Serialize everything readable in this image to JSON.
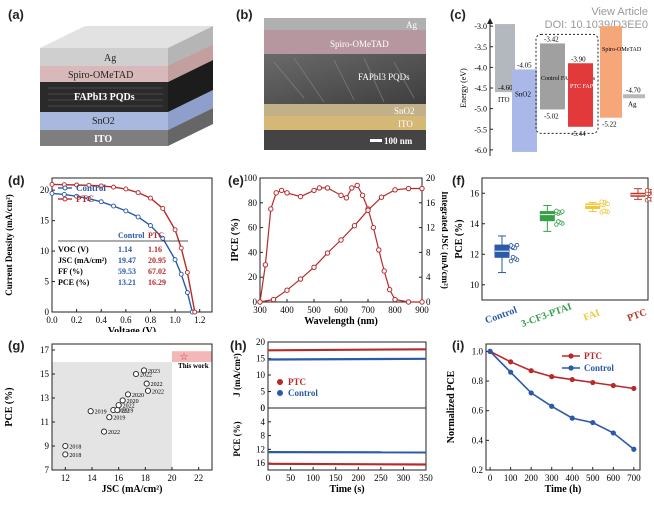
{
  "watermark": {
    "line1": "View Article",
    "line2": "DOI: 10.1039/D3EE0"
  },
  "panels": {
    "a": {
      "label": "(a)",
      "layers": [
        "Ag",
        "Spiro-OMeTAD",
        "FAPbI3 PQDs",
        "SnO2",
        "ITO"
      ],
      "colors": {
        "ag": "#d0d0d0",
        "spiro": "#d8b8b8",
        "pqd": "#2a2a2a",
        "sno2": "#a9b8de",
        "ito": "#8c8c8c"
      }
    },
    "b": {
      "label": "(b)",
      "layers": [
        "Ag",
        "Spiro-OMeTAD",
        "FAPbI3 PQDs",
        "SnO2",
        "ITO"
      ],
      "scalebar": "100 nm"
    },
    "c": {
      "label": "(c)",
      "ylabel": "Energy (eV)",
      "yticks": [
        "-3.0",
        "-3.5",
        "-4.0",
        "-4.5",
        "-5.0",
        "-5.5",
        "-6.0"
      ],
      "ylim": [
        -6.1,
        -2.9
      ],
      "ito": {
        "name": "ITO",
        "level": "-4.60"
      },
      "sno2": {
        "name": "SnO2",
        "cb": "-4.05"
      },
      "control": {
        "name": "Control FAPbI3 PQDs",
        "cb": "-3.42",
        "vb": "-5.02"
      },
      "ptc": {
        "name": "PTC FAPbI3 PQDs",
        "cb": "-3.90",
        "vb": "-5.44"
      },
      "spiro": {
        "name": "Spiro-OMeTAD",
        "vb": "-5.22"
      },
      "ag": {
        "name": "Ag",
        "level": "-4.70"
      },
      "colors": {
        "ito": "#9aa0a8",
        "sno2": "#a9b8e8",
        "control": "#a0a0a0",
        "ptc": "#e23a3a",
        "spiro": "#f5a77a",
        "ag": "#b8b8b8"
      }
    },
    "d": {
      "label": "(d)",
      "xlabel": "Voltage (V)",
      "ylabel": "Current Density (mA/cm²)",
      "xticks": [
        "0.0",
        "0.2",
        "0.4",
        "0.6",
        "0.8",
        "1.0",
        "1.2"
      ],
      "yticks": [
        "0",
        "5",
        "10",
        "15",
        "20"
      ],
      "legend": [
        "Control",
        "PTC"
      ],
      "table": {
        "headers": [
          "",
          "Control",
          "PTC"
        ],
        "rows": [
          [
            "VOC (V)",
            "1.14",
            "1.16"
          ],
          [
            "JSC (mA/cm²)",
            "19.47",
            "20.95"
          ],
          [
            "FF (%)",
            "59.53",
            "67.02"
          ],
          [
            "PCE (%)",
            "13.21",
            "16.29"
          ]
        ]
      }
    },
    "e": {
      "label": "(e)",
      "xlabel": "Wavelength (nm)",
      "ylabel_left": "IPCE (%)",
      "ylabel_right": "Integrated JSC (mA/cm²)",
      "xticks": [
        "300",
        "400",
        "500",
        "600",
        "700",
        "800",
        "900"
      ],
      "yticks_left": [
        "0",
        "20",
        "40",
        "60",
        "80",
        "100"
      ],
      "yticks_right": [
        "0",
        "4",
        "8",
        "12",
        "16",
        "20"
      ]
    },
    "f": {
      "label": "(f)",
      "ylabel": "PCE (%)",
      "yticks": [
        "10",
        "12",
        "14",
        "16"
      ],
      "categories": [
        "Control",
        "3-CF3-PTAI",
        "FAI",
        "PTC"
      ],
      "colors": [
        "#2a5aa8",
        "#35a048",
        "#f0c83a",
        "#b83a2a"
      ]
    },
    "g": {
      "label": "(g)",
      "xlabel": "JSC (mA/cm²)",
      "ylabel": "PCE (%)",
      "xticks": [
        "12",
        "14",
        "16",
        "18",
        "20",
        "22"
      ],
      "yticks": [
        "7",
        "9",
        "11",
        "13",
        "15",
        "17"
      ],
      "this_work": "This work",
      "points": [
        {
          "x": 12.0,
          "y": 9.0,
          "t": "2018"
        },
        {
          "x": 12.0,
          "y": 8.3,
          "t": "2018"
        },
        {
          "x": 13.9,
          "y": 11.9,
          "t": "2019"
        },
        {
          "x": 14.9,
          "y": 10.2,
          "t": "2022"
        },
        {
          "x": 15.3,
          "y": 11.4,
          "t": "2019"
        },
        {
          "x": 15.6,
          "y": 12.0,
          "t": "2022"
        },
        {
          "x": 15.9,
          "y": 12.0,
          "t": "2019"
        },
        {
          "x": 16.0,
          "y": 12.4,
          "t": "2022"
        },
        {
          "x": 16.3,
          "y": 12.8,
          "t": "2020"
        },
        {
          "x": 16.7,
          "y": 13.3,
          "t": "2020"
        },
        {
          "x": 17.3,
          "y": 15.0,
          "t": "2022"
        },
        {
          "x": 17.9,
          "y": 15.3,
          "t": "2023"
        },
        {
          "x": 18.1,
          "y": 14.2,
          "t": "2022"
        },
        {
          "x": 18.2,
          "y": 13.6,
          "t": "2022"
        }
      ]
    },
    "h": {
      "label": "(h)",
      "xlabel": "Time (s)",
      "ylabel_top": "J (mA/cm²)",
      "ylabel_bottom": "PCE (%)",
      "xticks": [
        "0",
        "50",
        "100",
        "150",
        "200",
        "250",
        "300",
        "350"
      ],
      "yticks_top": [
        "0",
        "5",
        "10",
        "15",
        "20"
      ],
      "yticks_bottom": [
        "0",
        "4",
        "8",
        "12",
        "16"
      ],
      "legend": [
        "PTC",
        "Control"
      ]
    },
    "i": {
      "label": "(i)",
      "xlabel": "Time (h)",
      "ylabel": "Normalized PCE",
      "xticks": [
        "0",
        "100",
        "200",
        "300",
        "400",
        "500",
        "600",
        "700"
      ],
      "yticks": [
        "0.2",
        "0.4",
        "0.6",
        "0.8",
        "1.0"
      ],
      "legend": [
        "PTC",
        "Control"
      ]
    }
  },
  "chart_data": [
    {
      "type": "line",
      "panel": "d",
      "xlabel": "Voltage (V)",
      "ylabel": "Current Density (mA/cm²)",
      "xlim": [
        0,
        1.3
      ],
      "ylim": [
        0,
        22
      ],
      "series": [
        {
          "name": "Control",
          "color": "#2a5aa8",
          "x": [
            0,
            0.1,
            0.2,
            0.3,
            0.4,
            0.5,
            0.6,
            0.7,
            0.8,
            0.9,
            1.0,
            1.05,
            1.1,
            1.14
          ],
          "y": [
            19.47,
            19.3,
            19.0,
            18.6,
            18.1,
            17.4,
            16.6,
            15.6,
            14.2,
            12.1,
            8.6,
            6.2,
            3.2,
            0
          ]
        },
        {
          "name": "PTC",
          "color": "#b82a2a",
          "x": [
            0,
            0.1,
            0.2,
            0.3,
            0.4,
            0.5,
            0.6,
            0.7,
            0.8,
            0.9,
            1.0,
            1.05,
            1.1,
            1.16
          ],
          "y": [
            20.95,
            20.9,
            20.85,
            20.8,
            20.7,
            20.5,
            20.2,
            19.6,
            18.7,
            17.0,
            13.5,
            10.5,
            6.5,
            0
          ]
        }
      ]
    },
    {
      "type": "line",
      "panel": "e",
      "xlabel": "Wavelength (nm)",
      "xlim": [
        300,
        900
      ],
      "series": [
        {
          "name": "IPCE",
          "axis": "left",
          "ylim": [
            0,
            100
          ],
          "x": [
            300,
            320,
            340,
            360,
            380,
            400,
            450,
            500,
            520,
            550,
            600,
            620,
            640,
            660,
            680,
            700,
            720,
            740,
            760,
            780,
            800,
            850,
            900
          ],
          "y": [
            0,
            30,
            75,
            88,
            90,
            88,
            85,
            90,
            92,
            92,
            86,
            84,
            92,
            94,
            86,
            75,
            60,
            42,
            25,
            10,
            2,
            0,
            0
          ]
        },
        {
          "name": "Integrated JSC",
          "axis": "right",
          "ylim": [
            0,
            20
          ],
          "x": [
            300,
            350,
            400,
            450,
            500,
            550,
            600,
            650,
            700,
            750,
            800,
            850,
            900
          ],
          "y": [
            0,
            0.4,
            1.9,
            3.7,
            5.6,
            7.9,
            10.0,
            12.3,
            14.8,
            16.9,
            18.1,
            18.3,
            18.3
          ]
        }
      ]
    },
    {
      "type": "scatter",
      "panel": "f",
      "ylabel": "PCE (%)",
      "ylim": [
        9,
        17
      ],
      "categories": [
        "Control",
        "3-CF3-PTAI",
        "FAI",
        "PTC"
      ],
      "medians": [
        12.2,
        14.6,
        15.2,
        15.9
      ],
      "boxes": [
        [
          11.8,
          12.6
        ],
        [
          14.2,
          14.8
        ],
        [
          15.0,
          15.3
        ],
        [
          15.8,
          16.0
        ]
      ],
      "whiskers": [
        [
          10.8,
          13.2
        ],
        [
          13.5,
          15.2
        ],
        [
          14.8,
          15.4
        ],
        [
          15.6,
          16.3
        ]
      ]
    },
    {
      "type": "line",
      "panel": "h",
      "xlabel": "Time (s)",
      "xlim": [
        0,
        350
      ],
      "series": [
        {
          "name": "PTC",
          "quantity": "J",
          "color": "#b82a2a",
          "x": [
            0,
            350
          ],
          "y": [
            17.5,
            17.8
          ]
        },
        {
          "name": "Control",
          "quantity": "J",
          "color": "#2a5aa8",
          "x": [
            0,
            350
          ],
          "y": [
            14.7,
            14.9
          ]
        },
        {
          "name": "PTC",
          "quantity": "PCE",
          "color": "#b82a2a",
          "x": [
            0,
            350
          ],
          "y": [
            16.2,
            16.4
          ]
        },
        {
          "name": "Control",
          "quantity": "PCE",
          "color": "#2a5aa8",
          "x": [
            0,
            350
          ],
          "y": [
            12.8,
            12.9
          ]
        }
      ]
    },
    {
      "type": "line",
      "panel": "i",
      "xlabel": "Time (h)",
      "ylabel": "Normalized PCE",
      "xlim": [
        0,
        700
      ],
      "ylim": [
        0.2,
        1.05
      ],
      "series": [
        {
          "name": "PTC",
          "color": "#b82a2a",
          "x": [
            0,
            100,
            200,
            300,
            400,
            500,
            600,
            700
          ],
          "y": [
            1.0,
            0.93,
            0.87,
            0.83,
            0.81,
            0.79,
            0.77,
            0.75
          ]
        },
        {
          "name": "Control",
          "color": "#2a5aa8",
          "x": [
            0,
            100,
            200,
            300,
            400,
            500,
            600,
            700
          ],
          "y": [
            1.0,
            0.86,
            0.72,
            0.63,
            0.55,
            0.52,
            0.45,
            0.34
          ]
        }
      ]
    }
  ]
}
